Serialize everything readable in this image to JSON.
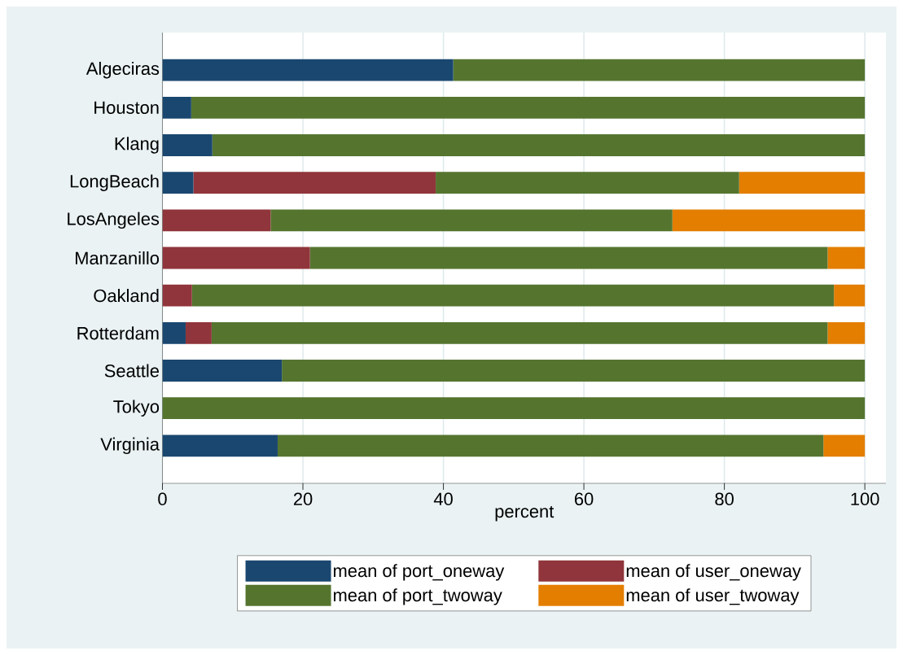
{
  "chart_data": {
    "type": "bar",
    "orientation": "horizontal",
    "stacked": true,
    "categories": [
      "Algeciras",
      "Houston",
      "Klang",
      "LongBeach",
      "LosAngeles",
      "Manzanillo",
      "Oakland",
      "Rotterdam",
      "Seattle",
      "Tokyo",
      "Virginia"
    ],
    "series": [
      {
        "name": "mean of port_oneway",
        "color": "#1a476f",
        "values": [
          41.4,
          4.1,
          7.1,
          4.4,
          0,
          0,
          0,
          3.3,
          17.0,
          0,
          16.4
        ]
      },
      {
        "name": "mean of user_oneway",
        "color": "#90353b",
        "values": [
          0,
          0,
          0,
          34.5,
          15.4,
          21.0,
          4.2,
          3.7,
          0,
          0,
          0
        ]
      },
      {
        "name": "mean of port_twoway",
        "color": "#55752f",
        "values": [
          58.6,
          95.9,
          92.9,
          43.2,
          57.2,
          73.7,
          91.4,
          87.7,
          83.0,
          100,
          77.7
        ]
      },
      {
        "name": "mean of user_twoway",
        "color": "#e37e00",
        "values": [
          0,
          0,
          0,
          17.9,
          27.4,
          5.3,
          4.4,
          5.3,
          0,
          0,
          5.9
        ]
      }
    ],
    "xlabel": "percent",
    "xlim": [
      0,
      103
    ],
    "xticks": [
      0,
      20,
      40,
      60,
      80,
      100
    ],
    "grid": "x",
    "legend": "bottom"
  }
}
